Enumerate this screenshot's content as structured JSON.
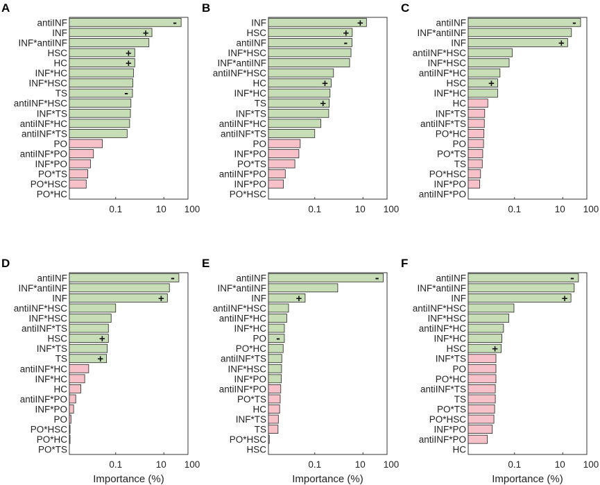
{
  "figure": {
    "colors": {
      "positive": "#c6ddb5",
      "negative": "#f6c1c8",
      "bar_stroke": "#222222"
    },
    "x_tick_labels": [
      "0.1",
      "10",
      "100"
    ],
    "x_label": "Importance (%)"
  },
  "chart_data": [
    {
      "panel": "A",
      "type": "bar",
      "orientation": "horizontal",
      "xscale": "log",
      "xlabel": "",
      "xlim": [
        0.0012,
        100
      ],
      "categories": [
        "antiINF",
        "INF",
        "INF*antiINF",
        "HSC",
        "HC",
        "INF*HC",
        "INF*HSC",
        "TS",
        "antiINF*HSC",
        "INF*TS",
        "antiINF*HC",
        "antiINF*TS",
        "PO",
        "antiINF*PO",
        "INF*PO",
        "PO*TS",
        "PO*HSC",
        "PO*HC"
      ],
      "values": [
        52,
        3.2,
        2.4,
        0.62,
        0.62,
        0.55,
        0.52,
        0.5,
        0.43,
        0.41,
        0.38,
        0.3,
        0.028,
        0.012,
        0.009,
        0.007,
        0.006,
        0
      ],
      "direction": [
        "-",
        "+",
        "",
        "+",
        "+",
        "",
        "",
        "-",
        "",
        "",
        "",
        "",
        "",
        "",
        "",
        "",
        "",
        ""
      ],
      "color_group": [
        "positive",
        "positive",
        "positive",
        "positive",
        "positive",
        "positive",
        "positive",
        "positive",
        "positive",
        "positive",
        "positive",
        "positive",
        "negative",
        "negative",
        "negative",
        "negative",
        "negative",
        "negative"
      ]
    },
    {
      "panel": "B",
      "type": "bar",
      "orientation": "horizontal",
      "xscale": "log",
      "xlabel": "",
      "xlim": [
        0.0012,
        100
      ],
      "categories": [
        "INF",
        "HSC",
        "antiINF",
        "INF*HSC",
        "INF*antiINF",
        "antiINF*HSC",
        "HC",
        "INF*HC",
        "TS",
        "INF*TS",
        "antiINF*HC",
        "antiINF*TS",
        "PO",
        "INF*PO",
        "PO*TS",
        "antiINF*PO",
        "INF*PO",
        "PO*HSC"
      ],
      "values": [
        14,
        3.6,
        3.5,
        3.2,
        2.8,
        0.6,
        0.48,
        0.43,
        0.4,
        0.38,
        0.18,
        0.1,
        0.025,
        0.022,
        0.015,
        0.006,
        0.005,
        0
      ],
      "direction": [
        "+",
        "+",
        "-",
        "",
        "",
        "",
        "+",
        "",
        "+",
        "",
        "",
        "",
        "",
        "",
        "",
        "",
        "",
        ""
      ],
      "color_group": [
        "positive",
        "positive",
        "positive",
        "positive",
        "positive",
        "positive",
        "positive",
        "positive",
        "positive",
        "positive",
        "positive",
        "positive",
        "negative",
        "negative",
        "negative",
        "negative",
        "negative",
        "negative"
      ]
    },
    {
      "panel": "C",
      "type": "bar",
      "orientation": "horizontal",
      "xscale": "log",
      "xlabel": "",
      "xlim": [
        0.0012,
        100
      ],
      "categories": [
        "antiINF",
        "INF*antiINF",
        "INF",
        "antiINF*HSC",
        "INF*HSC",
        "antiINF*HC",
        "HSC",
        "INF*HC",
        "HC",
        "INF*TS",
        "antiINF*TS",
        "PO*HC",
        "PO",
        "PO*TS",
        "TS",
        "PO*HSC",
        "INF*PO",
        "antiINF*PO"
      ],
      "values": [
        55,
        23,
        16,
        0.08,
        0.06,
        0.025,
        0.02,
        0.02,
        0.0078,
        0.0058,
        0.0056,
        0.0054,
        0.0052,
        0.0048,
        0.0046,
        0.0039,
        0.0036,
        0
      ],
      "direction": [
        "-",
        "",
        "+",
        "",
        "",
        "",
        "+",
        "",
        "",
        "",
        "",
        "",
        "",
        "",
        "",
        "",
        "",
        ""
      ],
      "color_group": [
        "positive",
        "positive",
        "positive",
        "positive",
        "positive",
        "positive",
        "positive",
        "positive",
        "negative",
        "negative",
        "negative",
        "negative",
        "negative",
        "negative",
        "negative",
        "negative",
        "negative",
        "negative"
      ]
    },
    {
      "panel": "D",
      "type": "bar",
      "orientation": "horizontal",
      "xscale": "log",
      "xlabel": "Importance (%)",
      "xlim": [
        0.0012,
        100
      ],
      "categories": [
        "antiINF",
        "INF*antiINF",
        "INF",
        "antiINF*HSC",
        "INF*HSC",
        "antiINF*TS",
        "HSC",
        "INF*TS",
        "TS",
        "antiINF*HC",
        "INF*HC",
        "HC",
        "antiINF*PO",
        "INF*PO",
        "PO",
        "PO*HSC",
        "PO*HC",
        "PO*TS"
      ],
      "values": [
        42,
        17,
        14,
        0.1,
        0.065,
        0.05,
        0.05,
        0.045,
        0.042,
        0.0076,
        0.0052,
        0.0036,
        0.0022,
        0.0018,
        0.0014,
        0.0012,
        0.0012,
        0
      ],
      "direction": [
        "-",
        "",
        "+",
        "",
        "",
        "",
        "+",
        "",
        "+",
        "",
        "",
        "",
        "",
        "",
        "",
        "",
        "",
        ""
      ],
      "color_group": [
        "positive",
        "positive",
        "positive",
        "positive",
        "positive",
        "positive",
        "positive",
        "positive",
        "positive",
        "negative",
        "negative",
        "negative",
        "negative",
        "negative",
        "negative",
        "negative",
        "negative",
        "negative"
      ]
    },
    {
      "panel": "E",
      "type": "bar",
      "orientation": "horizontal",
      "xscale": "log",
      "xlabel": "Importance (%)",
      "xlim": [
        0.0012,
        100
      ],
      "categories": [
        "antiINF",
        "INF*antiINF",
        "INF",
        "antiINF*HSC",
        "antiINF*HC",
        "INF*HC",
        "PO",
        "PO*HC",
        "antiINF*TS",
        "INF*HSC",
        "INF*PO",
        "antiINF*PO",
        "PO*TS",
        "HC",
        "INF*TS",
        "TS",
        "PO*HSC",
        "HSC"
      ],
      "values": [
        70,
        0.9,
        0.04,
        0.0082,
        0.0069,
        0.0055,
        0.0055,
        0.0049,
        0.0043,
        0.0042,
        0.0041,
        0.0039,
        0.0037,
        0.0035,
        0.0031,
        0.003,
        0.0013,
        0
      ],
      "direction": [
        "-",
        "",
        "+",
        "",
        "",
        "",
        "-",
        "",
        "",
        "",
        "",
        "",
        "",
        "",
        "",
        "",
        "",
        ""
      ],
      "color_group": [
        "positive",
        "positive",
        "positive",
        "positive",
        "positive",
        "positive",
        "positive",
        "positive",
        "positive",
        "positive",
        "positive",
        "negative",
        "negative",
        "negative",
        "negative",
        "negative",
        "negative",
        "negative"
      ]
    },
    {
      "panel": "F",
      "type": "bar",
      "orientation": "horizontal",
      "xscale": "log",
      "xlabel": "Importance (%)",
      "xlim": [
        0.0012,
        100
      ],
      "categories": [
        "antiINF",
        "INF*antiINF",
        "INF",
        "antiINF*HSC",
        "INF*HSC",
        "antiINF*HC",
        "INF*HC",
        "HSC",
        "INF*TS",
        "PO",
        "PO*HC",
        "antiINF*TS",
        "TS",
        "PO*TS",
        "PO*HSC",
        "INF*PO",
        "antiINF*PO",
        "HC"
      ],
      "values": [
        45,
        30,
        22,
        0.095,
        0.058,
        0.035,
        0.03,
        0.028,
        0.017,
        0.017,
        0.017,
        0.016,
        0.016,
        0.015,
        0.014,
        0.012,
        0.0075,
        0
      ],
      "direction": [
        "-",
        "",
        "+",
        "",
        "",
        "",
        "",
        "+",
        "",
        "",
        "",
        "",
        "",
        "",
        "",
        "",
        "",
        ""
      ],
      "color_group": [
        "positive",
        "positive",
        "positive",
        "positive",
        "positive",
        "positive",
        "positive",
        "positive",
        "negative",
        "negative",
        "negative",
        "negative",
        "negative",
        "negative",
        "negative",
        "negative",
        "negative",
        "negative"
      ]
    }
  ]
}
